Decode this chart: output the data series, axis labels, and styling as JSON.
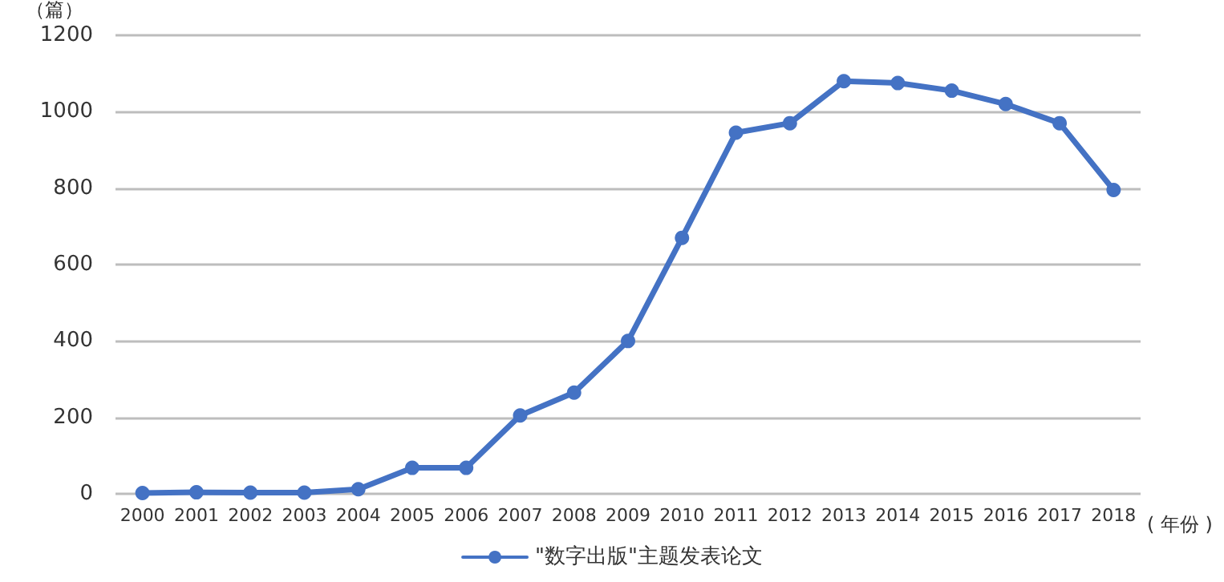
{
  "chart_data": {
    "type": "line",
    "ylabel": "（篇）",
    "xlabel": "( 年份 )",
    "categories": [
      "2000",
      "2001",
      "2002",
      "2003",
      "2004",
      "2005",
      "2006",
      "2007",
      "2008",
      "2009",
      "2010",
      "2011",
      "2012",
      "2013",
      "2014",
      "2015",
      "2016",
      "2017",
      "2018"
    ],
    "series": [
      {
        "name": "\"数字出版\"主题发表论文",
        "color": "#4472c4",
        "values": [
          2,
          4,
          3,
          3,
          12,
          68,
          68,
          205,
          265,
          400,
          670,
          945,
          970,
          1080,
          1075,
          1055,
          1020,
          970,
          795
        ]
      }
    ],
    "ylim": [
      0,
      1200
    ],
    "yticks": [
      0,
      200,
      400,
      600,
      800,
      1000,
      1200
    ],
    "grid": "y",
    "legend": "bottom",
    "marker": "circle",
    "line_style": "solid"
  }
}
